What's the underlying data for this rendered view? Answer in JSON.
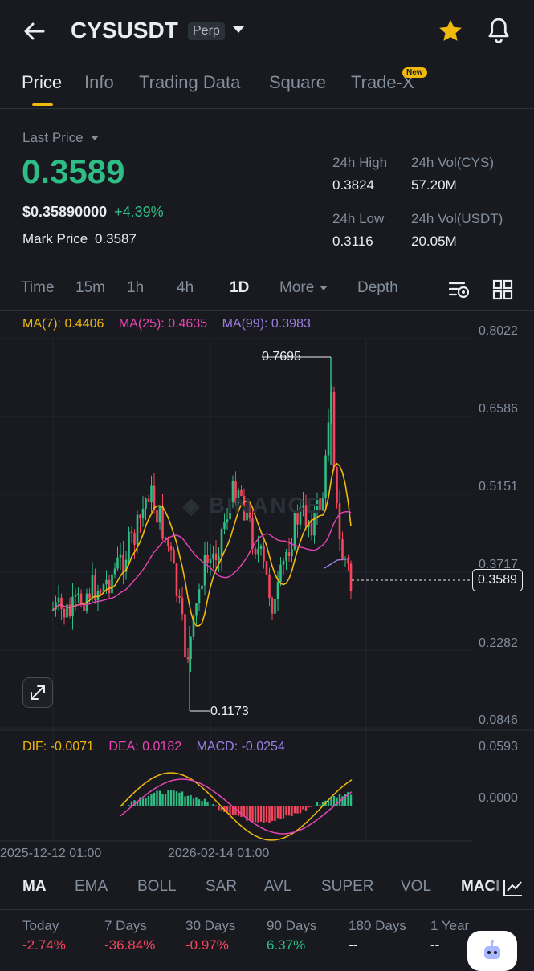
{
  "header": {
    "symbol": "CYSUSDT",
    "contract_type": "Perp",
    "icons": [
      "back-arrow-icon",
      "chevron-down-icon",
      "star-icon",
      "bell-icon"
    ]
  },
  "tabs": [
    {
      "label": "Price",
      "active": true
    },
    {
      "label": "Info"
    },
    {
      "label": "Trading Data"
    },
    {
      "label": "Square"
    },
    {
      "label": "Trade-X",
      "badge": "New"
    }
  ],
  "price": {
    "last_price_label": "Last Price",
    "last_price": "0.3589",
    "usd_price": "$0.35890000",
    "change": "+4.39%",
    "mark_label": "Mark Price",
    "mark_value": "0.3587"
  },
  "stats": {
    "high_label": "24h High",
    "high": "0.3824",
    "low_label": "24h Low",
    "low": "0.3116",
    "vol_base_label": "24h Vol(CYS)",
    "vol_base": "57.20M",
    "vol_quote_label": "24h Vol(USDT)",
    "vol_quote": "20.05M"
  },
  "timeframes": [
    "Time",
    "15m",
    "1h",
    "4h",
    "1D",
    "More",
    "Depth"
  ],
  "active_timeframe": "1D",
  "ma_legend": {
    "ma7": "MA(7): 0.4406",
    "ma25": "MA(25): 0.4635",
    "ma99": "MA(99): 0.3983"
  },
  "price_axis": [
    "0.8022",
    "0.6586",
    "0.5151",
    "0.3717",
    "0.2282",
    "0.0846"
  ],
  "current_price_tag": "0.3589",
  "high_marker": "0.7695",
  "low_marker": "0.1173",
  "macd_legend": {
    "dif": "DIF: -0.0071",
    "dea": "DEA: 0.0182",
    "macd": "MACD: -0.0254"
  },
  "macd_axis": [
    "0.0593",
    "0.0000"
  ],
  "time_axis": [
    "2025-12-12 01:00",
    "2026-02-14 01:00"
  ],
  "indicators": [
    "MA",
    "EMA",
    "BOLL",
    "SAR",
    "AVL",
    "SUPER",
    "VOL",
    "MACD"
  ],
  "active_indicators": [
    "MA",
    "MACD"
  ],
  "periods": [
    {
      "label": "Today",
      "value": "-2.74%"
    },
    {
      "label": "7 Days",
      "value": "-36.84%"
    },
    {
      "label": "30 Days",
      "value": "-0.97%"
    },
    {
      "label": "90 Days",
      "value": "6.37%"
    },
    {
      "label": "180 Days",
      "value": "--"
    },
    {
      "label": "1 Year",
      "value": "--"
    }
  ],
  "watermark": "BINANCE",
  "colors": {
    "up": "#2ebd85",
    "down": "#f6465d",
    "accent": "#f0b90b",
    "ma7": "#f0b90b",
    "ma25": "#e844b4",
    "ma99": "#9c7ee0",
    "bg": "#181a20"
  }
}
